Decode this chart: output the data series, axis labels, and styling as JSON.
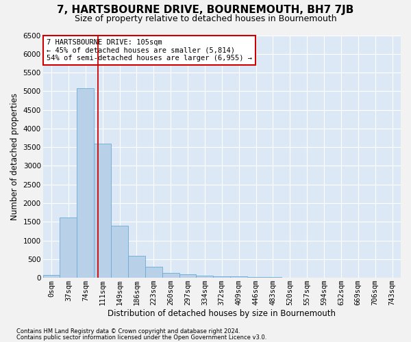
{
  "title": "7, HARTSBOURNE DRIVE, BOURNEMOUTH, BH7 7JB",
  "subtitle": "Size of property relative to detached houses in Bournemouth",
  "xlabel": "Distribution of detached houses by size in Bournemouth",
  "ylabel": "Number of detached properties",
  "footnote1": "Contains HM Land Registry data © Crown copyright and database right 2024.",
  "footnote2": "Contains public sector information licensed under the Open Government Licence v3.0.",
  "bar_labels": [
    "0sqm",
    "37sqm",
    "74sqm",
    "111sqm",
    "149sqm",
    "186sqm",
    "223sqm",
    "260sqm",
    "297sqm",
    "334sqm",
    "372sqm",
    "409sqm",
    "446sqm",
    "483sqm",
    "520sqm",
    "557sqm",
    "594sqm",
    "632sqm",
    "669sqm",
    "706sqm",
    "743sqm"
  ],
  "bar_values": [
    75,
    1620,
    5080,
    3600,
    1400,
    590,
    300,
    140,
    90,
    55,
    45,
    35,
    30,
    15,
    10,
    8,
    5,
    4,
    3,
    2,
    2
  ],
  "bar_color": "#b8d0e8",
  "bar_edge_color": "#6aaad4",
  "vline_x": 2.75,
  "vline_color": "#cc0000",
  "annotation_text": "7 HARTSBOURNE DRIVE: 105sqm\n← 45% of detached houses are smaller (5,814)\n54% of semi-detached houses are larger (6,955) →",
  "annotation_box_facecolor": "#ffffff",
  "annotation_box_edgecolor": "#cc0000",
  "ylim": [
    0,
    6500
  ],
  "plot_bg_color": "#dce8f5",
  "figure_bg_color": "#f2f2f2",
  "grid_color": "#ffffff",
  "title_fontsize": 11,
  "subtitle_fontsize": 9,
  "axis_label_fontsize": 8.5,
  "tick_fontsize": 7.5,
  "annotation_fontsize": 7.5,
  "footnote_fontsize": 6,
  "yticks": [
    0,
    500,
    1000,
    1500,
    2000,
    2500,
    3000,
    3500,
    4000,
    4500,
    5000,
    5500,
    6000,
    6500
  ]
}
